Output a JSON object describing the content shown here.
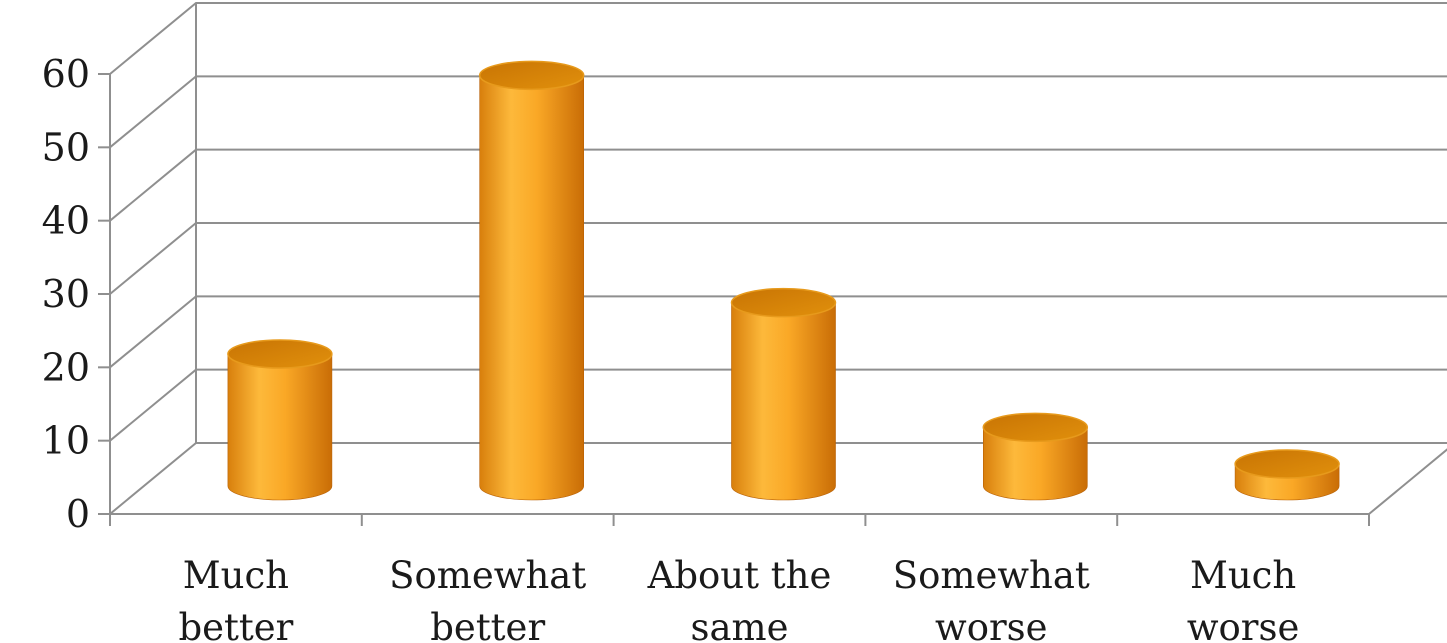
{
  "chart_data": {
    "type": "bar",
    "style": "3d-cylinder",
    "categories": [
      [
        "Much",
        "better"
      ],
      [
        "Somewhat",
        "better"
      ],
      [
        "About the",
        "same"
      ],
      [
        "Somewhat",
        "worse"
      ],
      [
        "Much",
        "worse"
      ]
    ],
    "values": [
      18,
      56,
      25,
      8,
      3
    ],
    "ylim": [
      0,
      60
    ],
    "y_ticks": [
      "0",
      "10",
      "20",
      "30",
      "40",
      "50",
      "60"
    ],
    "grid": true,
    "legend": "none",
    "title": "",
    "xlabel": "",
    "ylabel": "",
    "colors": {
      "bar_light": "#fdb93b",
      "bar_mid": "#f5a020",
      "bar_dark": "#c96d06",
      "bar_top": "#d88408",
      "gridline": "#8f8f8f",
      "text": "#1a1a1a"
    }
  }
}
